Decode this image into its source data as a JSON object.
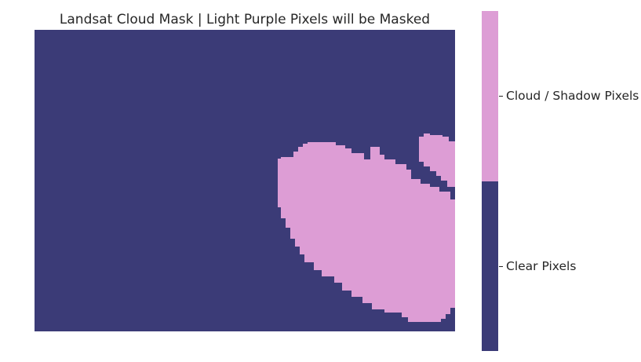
{
  "chart_data": {
    "type": "heatmap",
    "title": "Landsat Cloud Mask | Light Purple Pixels will be Masked",
    "xlabel": "",
    "ylabel": "",
    "grid": false,
    "colorbar": {
      "position": "right",
      "categories": [
        {
          "label": "Clear Pixels",
          "value": 0,
          "color": "#3b3b77"
        },
        {
          "label": "Cloud / Shadow Pixels",
          "value": 1,
          "color": "#dd9dd5"
        }
      ]
    }
  }
}
